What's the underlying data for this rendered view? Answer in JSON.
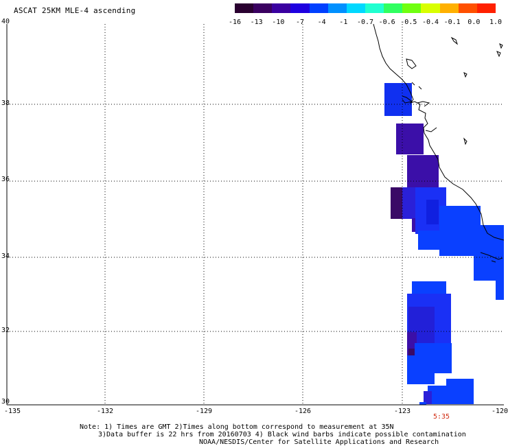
{
  "title": "ASCAT 25KM MLE-4 ascending",
  "colorbar": {
    "labels": [
      "-16",
      "-13",
      "-10",
      "-7",
      "-4",
      "-1",
      "-0.7",
      "-0.6",
      "-0.5",
      "-0.4",
      "-0.1",
      "0.0",
      "1.0"
    ],
    "colors": [
      "#2a0030",
      "#3a0060",
      "#3a00a0",
      "#1e00e0",
      "#0040ff",
      "#0090ff",
      "#00d8ff",
      "#20ffd0",
      "#30ff60",
      "#70ff10",
      "#d8ff00",
      "#ffb000",
      "#ff5000",
      "#ff2000"
    ]
  },
  "lat_labels": [
    "40",
    "38",
    "36",
    "34",
    "32",
    "30"
  ],
  "lon_labels": [
    "-135",
    "-132",
    "-129",
    "-126",
    "-123",
    "-120"
  ],
  "time_label": "5:35",
  "notes": {
    "line1": "Note: 1) Times are GMT 2)Times along bottom correspond to measurement at 35N",
    "line2": "3)Data buffer is 22 hrs from 20160703 4) Black wind barbs indicate possible contamination",
    "line3": "NOAA/NESDIS/Center for Satellite Applications and Research"
  },
  "colors": {
    "deep_purple": "#3a0a66",
    "violet": "#3b0fa8",
    "blue": "#1030f0",
    "bright_blue": "#0a40ff",
    "time_red": "#d02a10"
  }
}
